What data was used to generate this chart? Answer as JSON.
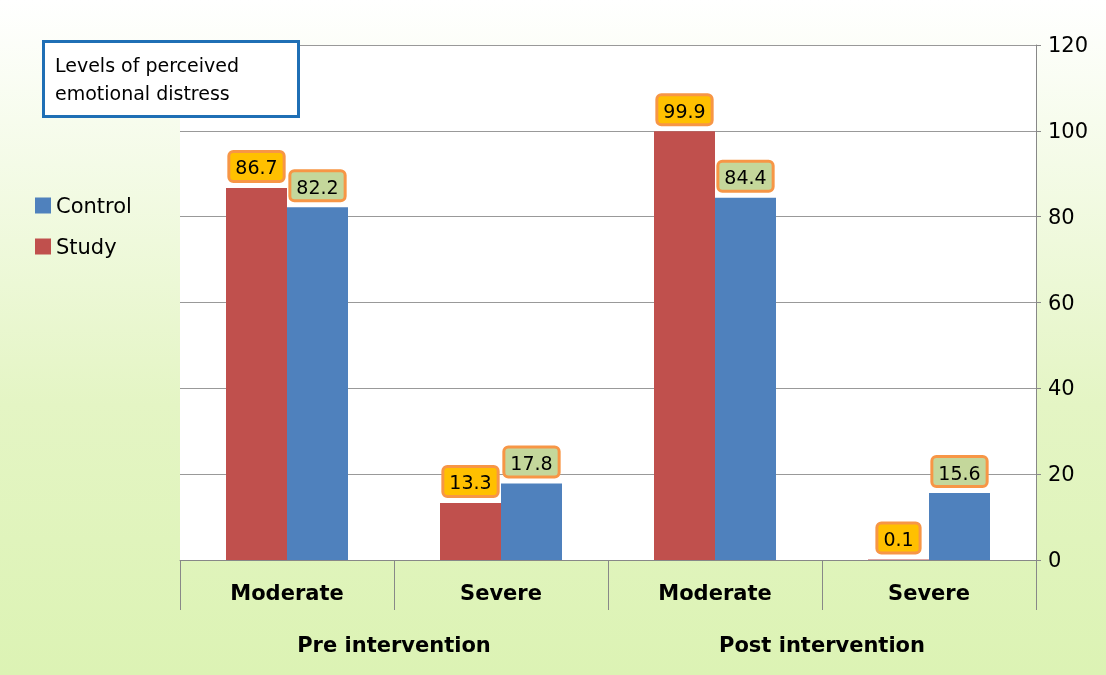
{
  "chart_data": {
    "type": "bar",
    "title": "Levels of perceived emotional distress",
    "categories": [
      "Moderate",
      "Severe",
      "Moderate",
      "Severe"
    ],
    "annotations": [
      "Pre intervention",
      "Post intervention"
    ],
    "series": [
      {
        "name": "Study",
        "color": "#c0504d",
        "values": [
          86.7,
          13.3,
          99.9,
          0.1
        ]
      },
      {
        "name": "Control",
        "color": "#4f81bd",
        "values": [
          82.2,
          17.8,
          84.4,
          15.6
        ]
      }
    ],
    "ylim": [
      0,
      120
    ],
    "yticks": [
      0,
      20,
      40,
      60,
      80,
      100,
      120
    ],
    "grid": "y",
    "legend": "left",
    "data_labels": true
  }
}
